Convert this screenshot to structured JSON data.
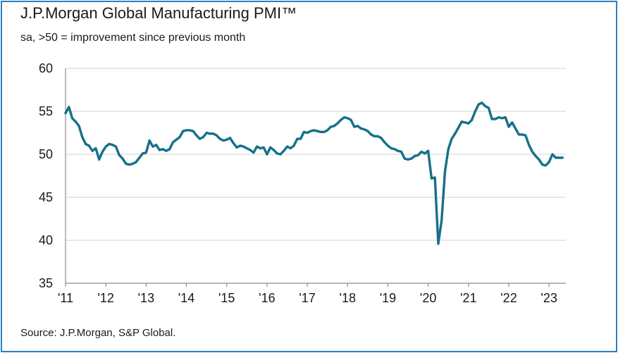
{
  "chart_data": {
    "type": "line",
    "title": "J.P.Morgan Global Manufacturing PMI™",
    "subtitle": "sa, >50 = improvement since previous month",
    "source": "Source: J.P.Morgan, S&P Global.",
    "xlabel": "",
    "ylabel": "",
    "ylim": [
      35,
      60
    ],
    "yticks": [
      35,
      40,
      45,
      50,
      55,
      60
    ],
    "ytick_labels": [
      "35",
      "40",
      "45",
      "50",
      "55",
      "60"
    ],
    "xtick_labels": [
      "'11",
      "'12",
      "'13",
      "'14",
      "'15",
      "'16",
      "'17",
      "'18",
      "'19",
      "'20",
      "'21",
      "'22",
      "'23"
    ],
    "grid": "horizontal",
    "color": "#17708a",
    "series": [
      {
        "name": "Global Manufacturing PMI",
        "start": "2011-01",
        "frequency": "monthly",
        "values": [
          54.8,
          55.5,
          54.2,
          53.8,
          53.3,
          52.0,
          51.2,
          51.0,
          50.4,
          50.7,
          49.4,
          50.3,
          50.9,
          51.2,
          51.1,
          50.9,
          49.9,
          49.5,
          48.9,
          48.8,
          48.9,
          49.1,
          49.6,
          50.1,
          50.2,
          51.6,
          50.9,
          51.1,
          50.5,
          50.6,
          50.4,
          50.6,
          51.4,
          51.7,
          52.0,
          52.7,
          52.8,
          52.8,
          52.7,
          52.2,
          51.8,
          52.0,
          52.5,
          52.4,
          52.4,
          52.2,
          51.8,
          51.6,
          51.7,
          51.9,
          51.3,
          50.8,
          51.0,
          50.9,
          50.7,
          50.5,
          50.2,
          50.9,
          50.7,
          50.8,
          50.0,
          50.8,
          50.5,
          50.1,
          50.0,
          50.4,
          50.9,
          50.7,
          51.0,
          51.8,
          51.8,
          52.6,
          52.5,
          52.7,
          52.8,
          52.7,
          52.6,
          52.6,
          52.8,
          53.2,
          53.3,
          53.6,
          54.0,
          54.3,
          54.2,
          54.0,
          53.2,
          53.3,
          53.0,
          52.9,
          52.7,
          52.3,
          52.1,
          52.1,
          51.9,
          51.4,
          51.0,
          50.7,
          50.6,
          50.4,
          50.3,
          49.5,
          49.4,
          49.5,
          49.8,
          49.9,
          50.3,
          50.1,
          50.4,
          47.2,
          47.3,
          39.6,
          42.3,
          48.0,
          50.6,
          51.8,
          52.4,
          53.1,
          53.8,
          53.7,
          53.6,
          54.0,
          55.0,
          55.8,
          56.0,
          55.6,
          55.4,
          54.1,
          54.1,
          54.3,
          54.2,
          54.3,
          53.2,
          53.7,
          53.0,
          52.3,
          52.3,
          52.2,
          51.1,
          50.3,
          49.8,
          49.4,
          48.8,
          48.7,
          49.1,
          50.0,
          49.6,
          49.6,
          49.6
        ]
      }
    ]
  }
}
